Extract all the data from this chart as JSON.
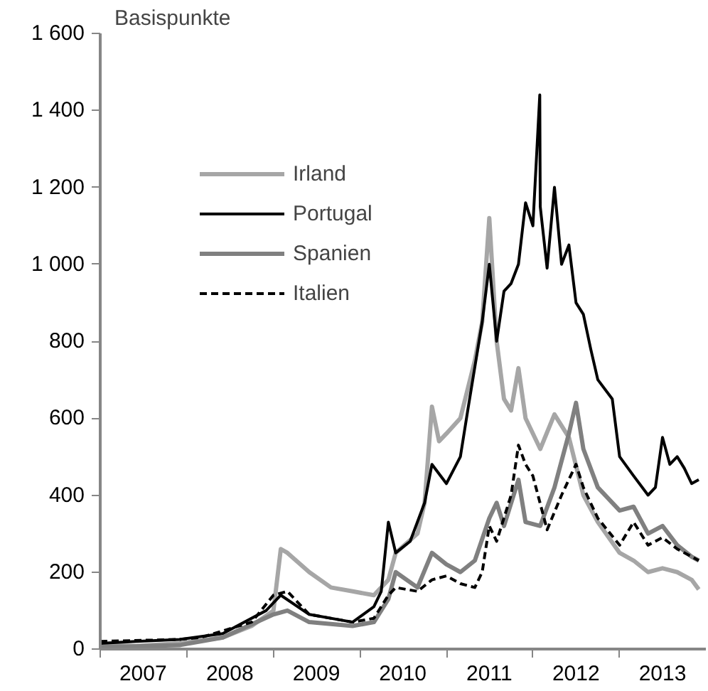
{
  "chart_data": {
    "type": "line",
    "ylabel": "Basispunkte",
    "xlim": [
      "2007-01-01",
      "2013-12-31"
    ],
    "xticks": [
      {
        "value": "2007-01-01",
        "label": null
      },
      {
        "value": "2007-07-01",
        "label": "2007"
      },
      {
        "value": "2008-01-01",
        "label": null
      },
      {
        "value": "2008-07-01",
        "label": "2008"
      },
      {
        "value": "2009-01-01",
        "label": null
      },
      {
        "value": "2009-07-01",
        "label": "2009"
      },
      {
        "value": "2010-01-01",
        "label": null
      },
      {
        "value": "2010-07-01",
        "label": "2010"
      },
      {
        "value": "2011-01-01",
        "label": null
      },
      {
        "value": "2011-07-01",
        "label": "2011"
      },
      {
        "value": "2012-01-01",
        "label": null
      },
      {
        "value": "2012-07-01",
        "label": "2012"
      },
      {
        "value": "2013-01-01",
        "label": null
      },
      {
        "value": "2013-07-01",
        "label": "2013"
      }
    ],
    "ylim": [
      0,
      1600
    ],
    "yticks": [
      0,
      200,
      400,
      600,
      800,
      {
        "value": 1000,
        "label": "1 000"
      },
      {
        "value": 1200,
        "label": "1 200"
      },
      {
        "value": 1400,
        "label": "1 400"
      },
      {
        "value": 1600,
        "label": "1 600"
      }
    ],
    "grid": false,
    "legend": "top left",
    "series": [
      {
        "name": "Irland",
        "color": "#a6a6a6",
        "line_style": "solid",
        "x": [
          "2007-01",
          "2007-06",
          "2007-12",
          "2008-06",
          "2008-10",
          "2009-01",
          "2009-02",
          "2009-03",
          "2009-06",
          "2009-09",
          "2009-12",
          "2010-03",
          "2010-05",
          "2010-06",
          "2010-09",
          "2010-10",
          "2010-11",
          "2010-12",
          "2011-01",
          "2011-03",
          "2011-05",
          "2011-06",
          "2011-07",
          "2011-08",
          "2011-09",
          "2011-10",
          "2011-11",
          "2011-12",
          "2012-02",
          "2012-04",
          "2012-06",
          "2012-08",
          "2012-10",
          "2013-01",
          "2013-03",
          "2013-05",
          "2013-07",
          "2013-09",
          "2013-11",
          "2013-12"
        ],
        "values": [
          10,
          8,
          15,
          30,
          60,
          100,
          260,
          250,
          200,
          160,
          150,
          140,
          180,
          250,
          300,
          380,
          630,
          540,
          560,
          600,
          750,
          850,
          1120,
          800,
          650,
          620,
          730,
          600,
          520,
          610,
          550,
          400,
          330,
          250,
          230,
          200,
          210,
          200,
          180,
          155
        ]
      },
      {
        "name": "Portugal",
        "color": "#000000",
        "line_style": "solid",
        "x": [
          "2007-01",
          "2007-06",
          "2007-12",
          "2008-06",
          "2008-12",
          "2009-02",
          "2009-06",
          "2009-12",
          "2010-03",
          "2010-04",
          "2010-05",
          "2010-06",
          "2010-08",
          "2010-10",
          "2010-11",
          "2011-01",
          "2011-03",
          "2011-04",
          "2011-06",
          "2011-07",
          "2011-08",
          "2011-09",
          "2011-10",
          "2011-11",
          "2011-12",
          "2012-01",
          "2012-01-30",
          "2012-02",
          "2012-03",
          "2012-04",
          "2012-05",
          "2012-06",
          "2012-07",
          "2012-08",
          "2012-09",
          "2012-10",
          "2012-12",
          "2013-01",
          "2013-03",
          "2013-05",
          "2013-06",
          "2013-07",
          "2013-08",
          "2013-09",
          "2013-10",
          "2013-11",
          "2013-12"
        ],
        "values": [
          15,
          20,
          25,
          40,
          100,
          140,
          90,
          70,
          110,
          150,
          330,
          250,
          280,
          380,
          480,
          430,
          500,
          620,
          850,
          1000,
          800,
          930,
          950,
          1000,
          1160,
          1100,
          1440,
          1150,
          990,
          1200,
          1000,
          1050,
          900,
          870,
          780,
          700,
          650,
          500,
          450,
          400,
          420,
          550,
          480,
          500,
          470,
          430,
          440
        ]
      },
      {
        "name": "Spanien",
        "color": "#808080",
        "line_style": "solid",
        "x": [
          "2007-01",
          "2007-12",
          "2008-06",
          "2009-01",
          "2009-03",
          "2009-06",
          "2009-12",
          "2010-03",
          "2010-05",
          "2010-06",
          "2010-09",
          "2010-11",
          "2011-01",
          "2011-03",
          "2011-05",
          "2011-07",
          "2011-08",
          "2011-09",
          "2011-11",
          "2011-12",
          "2012-02",
          "2012-04",
          "2012-06",
          "2012-07",
          "2012-08",
          "2012-10",
          "2013-01",
          "2013-03",
          "2013-05",
          "2013-07",
          "2013-09",
          "2013-11",
          "2013-12"
        ],
        "values": [
          5,
          10,
          30,
          90,
          100,
          70,
          60,
          70,
          130,
          200,
          160,
          250,
          220,
          200,
          230,
          340,
          380,
          320,
          440,
          330,
          320,
          420,
          560,
          640,
          520,
          420,
          360,
          370,
          300,
          320,
          270,
          240,
          230
        ]
      },
      {
        "name": "Italien",
        "color": "#000000",
        "line_style": "dashed",
        "x": [
          "2007-01",
          "2007-12",
          "2008-03",
          "2008-10",
          "2009-01",
          "2009-03",
          "2009-06",
          "2009-12",
          "2010-03",
          "2010-05",
          "2010-06",
          "2010-09",
          "2010-11",
          "2011-01",
          "2011-03",
          "2011-05",
          "2011-06",
          "2011-07",
          "2011-08",
          "2011-10",
          "2011-11",
          "2011-12",
          "2012-01",
          "2012-03",
          "2012-05",
          "2012-07",
          "2012-08",
          "2012-10",
          "2013-01",
          "2013-03",
          "2013-05",
          "2013-07",
          "2013-09",
          "2013-11",
          "2013-12"
        ],
        "values": [
          20,
          25,
          30,
          70,
          140,
          150,
          90,
          70,
          80,
          140,
          160,
          150,
          180,
          190,
          170,
          160,
          200,
          320,
          280,
          400,
          530,
          480,
          450,
          310,
          400,
          480,
          420,
          340,
          270,
          330,
          270,
          290,
          260,
          240,
          230
        ]
      }
    ]
  }
}
